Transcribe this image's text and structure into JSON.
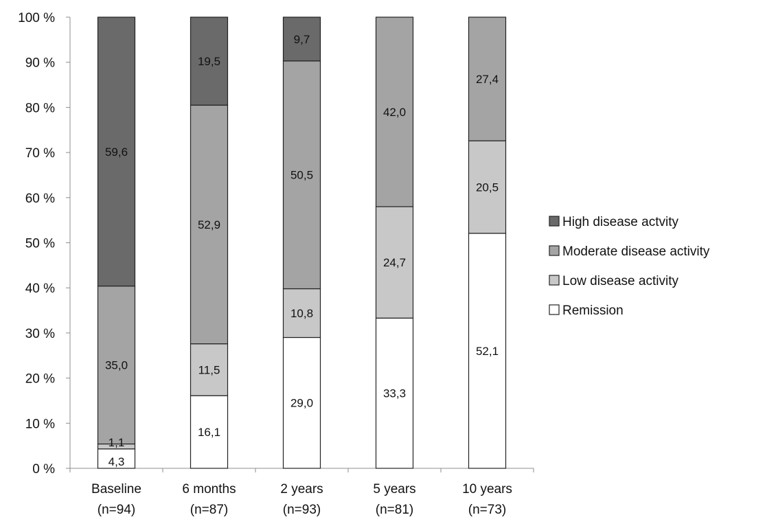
{
  "chart_data": {
    "type": "bar",
    "stacked": true,
    "percent_stacked": true,
    "categories": [
      [
        "Baseline",
        "(n=94)"
      ],
      [
        "6 months",
        "(n=87)"
      ],
      [
        "2 years",
        "(n=93)"
      ],
      [
        "5 years",
        "(n=81)"
      ],
      [
        "10 years",
        "(n=73)"
      ]
    ],
    "series": [
      {
        "name": "Remission",
        "color": "#ffffff",
        "values": [
          4.3,
          16.1,
          29.0,
          33.3,
          52.1
        ],
        "labels": [
          "4,3",
          "16,1",
          "29,0",
          "33,3",
          "52,1"
        ]
      },
      {
        "name": "Low disease activity",
        "color": "#c8c8c8",
        "values": [
          1.1,
          11.5,
          10.8,
          24.7,
          20.5
        ],
        "labels": [
          "1,1",
          "11,5",
          "10,8",
          "24,7",
          "20,5"
        ]
      },
      {
        "name": "Moderate disease activity",
        "color": "#a4a4a4",
        "values": [
          35.0,
          52.9,
          50.5,
          42.0,
          27.4
        ],
        "labels": [
          "35,0",
          "52,9",
          "50,5",
          "42,0",
          "27,4"
        ]
      },
      {
        "name": "High disease actvity",
        "color": "#6a6a6a",
        "values": [
          59.6,
          19.5,
          9.7,
          0,
          0
        ],
        "labels": [
          "59,6",
          "19,5",
          "9,7",
          "",
          ""
        ]
      }
    ],
    "ylim": [
      0,
      100
    ],
    "yticks": [
      0,
      10,
      20,
      30,
      40,
      50,
      60,
      70,
      80,
      90,
      100
    ],
    "ytick_labels": [
      "0 %",
      "10 %",
      "20 %",
      "30 %",
      "40 %",
      "50 %",
      "60 %",
      "70 %",
      "80 %",
      "90 %",
      "100 %"
    ],
    "legend_order": [
      "High disease actvity",
      "Moderate disease activity",
      "Low disease activity",
      "Remission"
    ],
    "legend_position": "right",
    "grid": false,
    "title": "",
    "xlabel": "",
    "ylabel": ""
  }
}
